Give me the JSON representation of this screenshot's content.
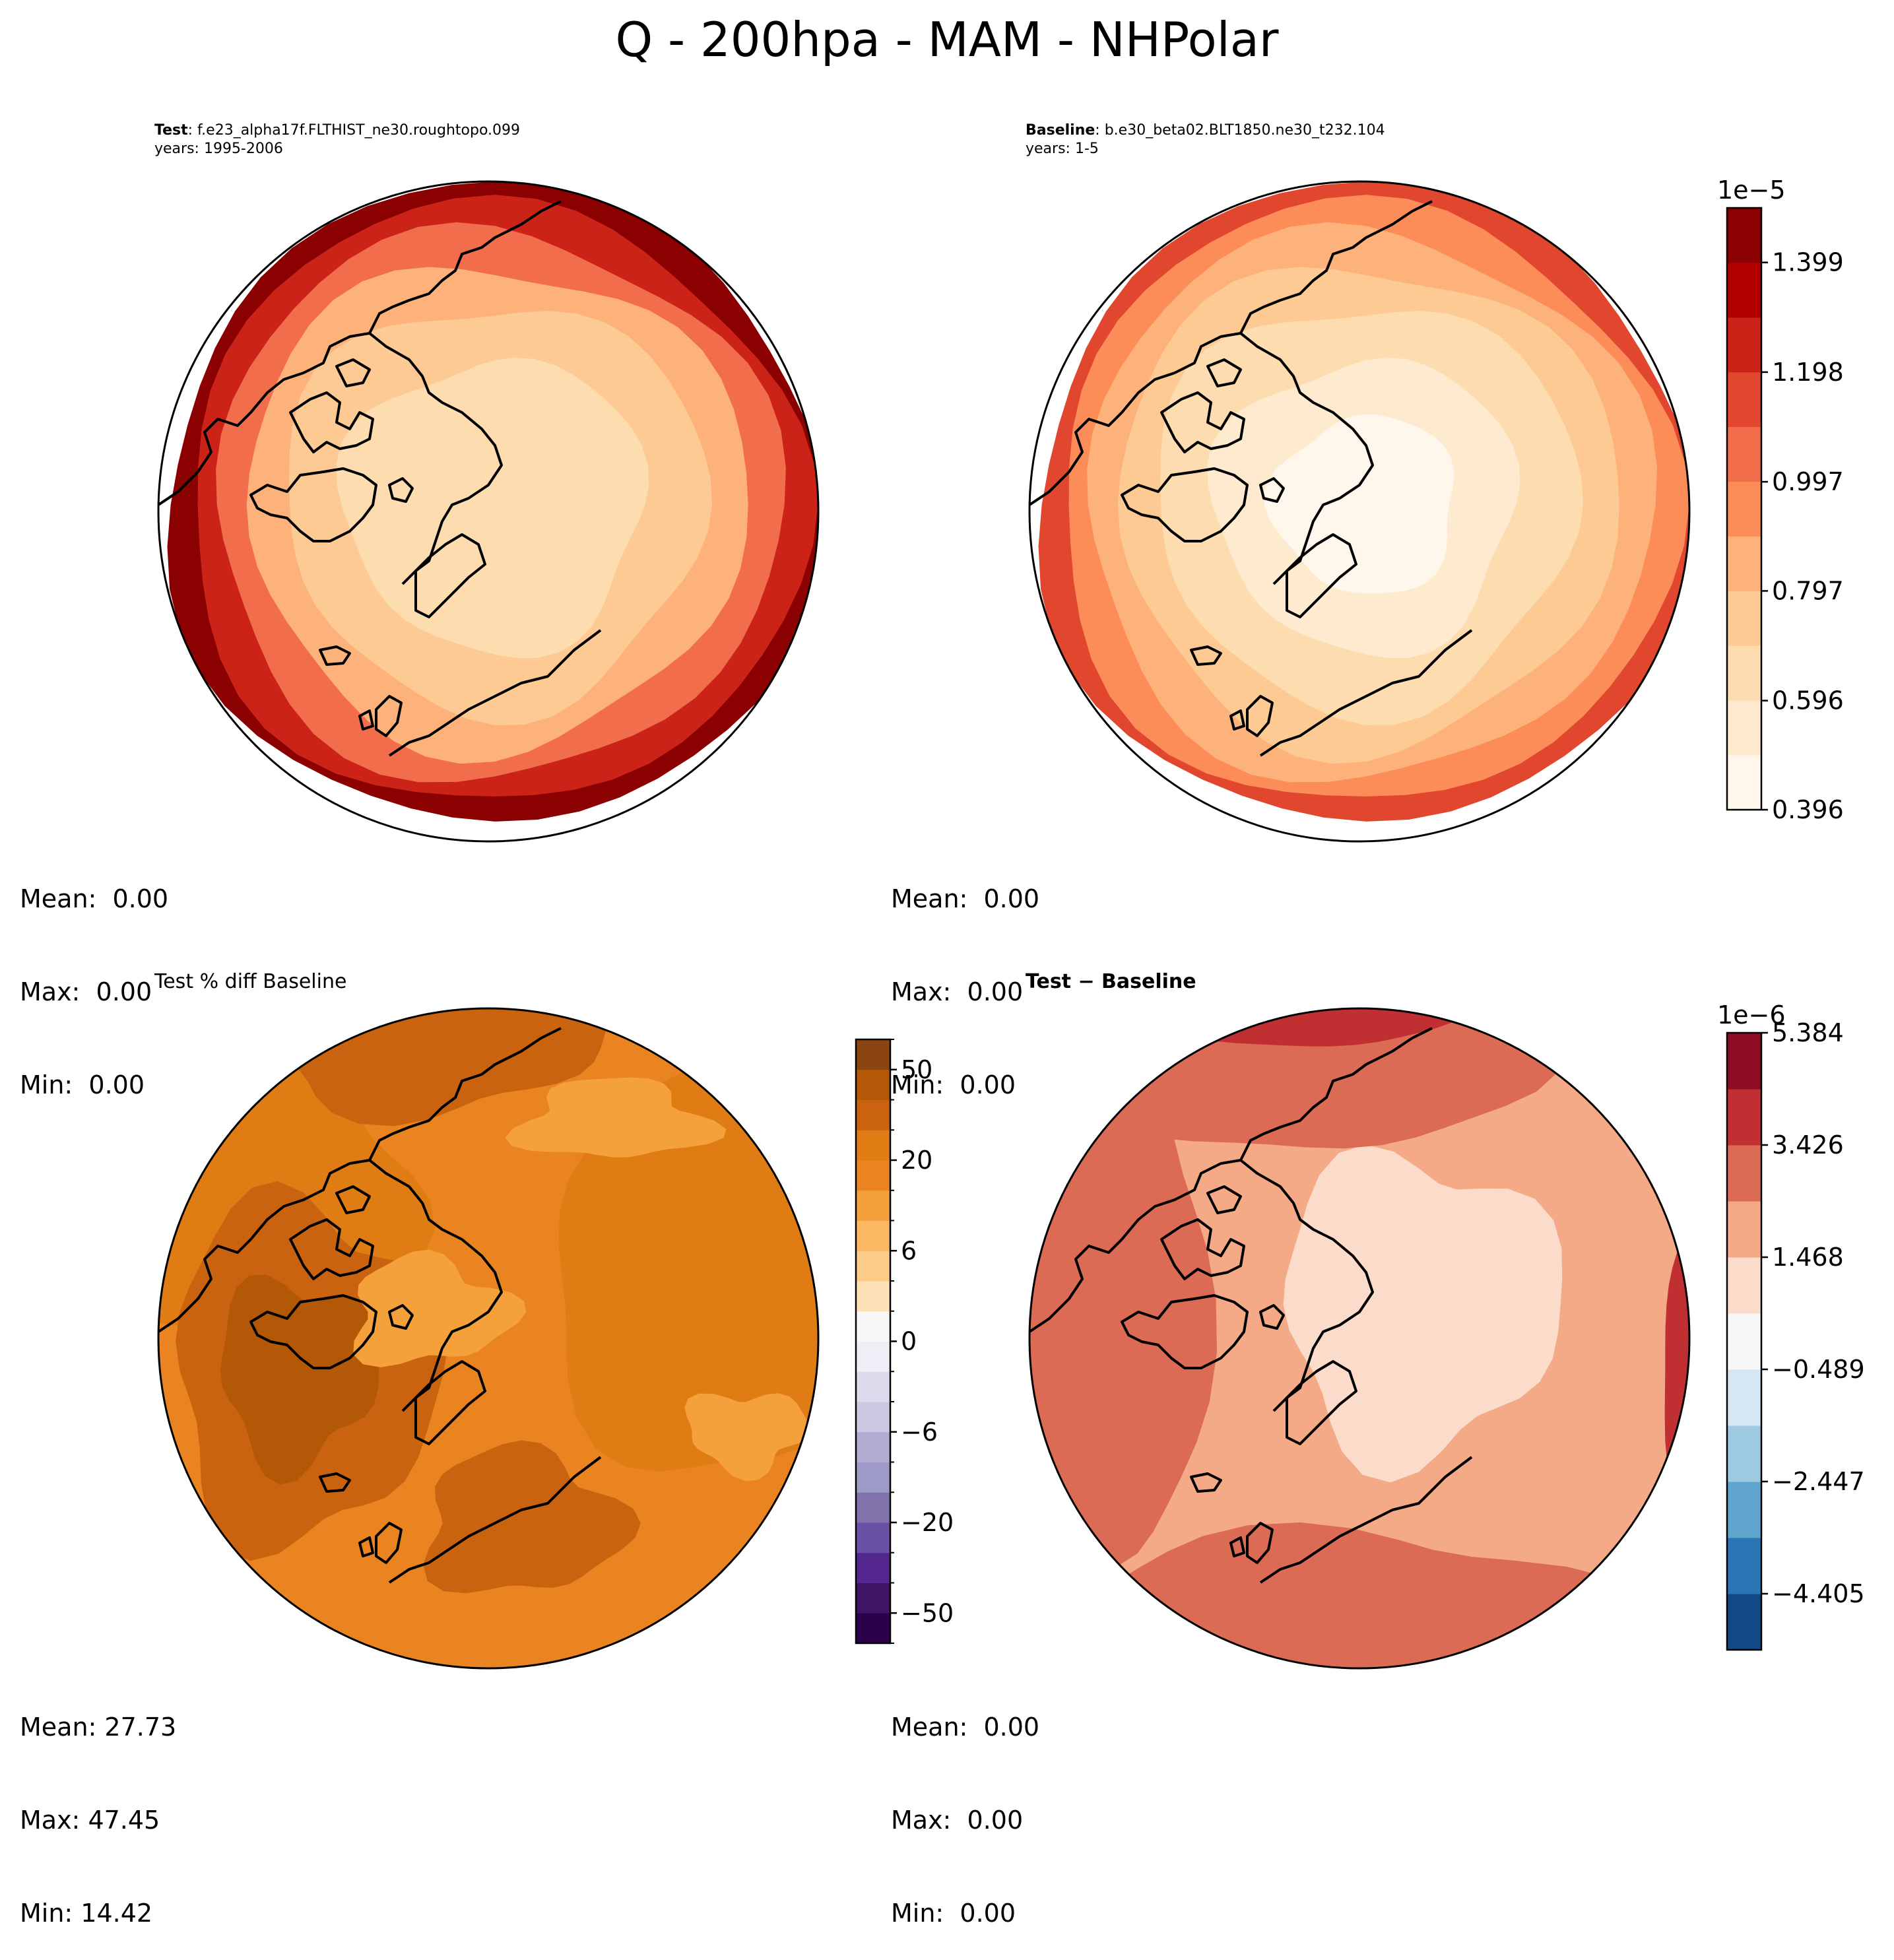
{
  "suptitle": "Q - 200hpa - MAM - NHPolar",
  "panels": {
    "test": {
      "label_bold": "Test",
      "label_rest": ": f.e23_alpha17f.FLTHIST_ne30.roughtopo.099",
      "years": "years: 1995-2006",
      "stats": {
        "mean": "Mean:  0.00",
        "max": "Max:  0.00",
        "min": "Min:  0.00"
      }
    },
    "baseline": {
      "label_bold": "Baseline",
      "label_rest": ": b.e30_beta02.BLT1850.ne30_t232.104",
      "years": "years: 1-5",
      "stats": {
        "mean": "Mean:  0.00",
        "max": "Max:  0.00",
        "min": "Min:  0.00"
      }
    },
    "pctdiff": {
      "title": "Test % diff Baseline",
      "stats": {
        "mean": "Mean: 27.73",
        "max": "Max: 47.45",
        "min": "Min: 14.42"
      }
    },
    "diff": {
      "title": "Test − Baseline",
      "stats": {
        "mean": "Mean:  0.00",
        "max": "Max:  0.00",
        "min": "Min:  0.00"
      }
    }
  },
  "chart_data": [
    {
      "type": "heatmap",
      "name": "Test",
      "projection": "north polar stereographic",
      "variable": "Q",
      "level": "200hpa",
      "season": "MAM",
      "colormap": "OrRd",
      "levels_e5": [
        0.396,
        0.496,
        0.596,
        0.696,
        0.797,
        0.897,
        0.997,
        1.098,
        1.198,
        1.298,
        1.399,
        1.499
      ],
      "colorbar_shared_with": "Baseline",
      "region_levels": {
        "pole": 0.596,
        "arctic": 0.697,
        "midlat": 0.997,
        "edge": 1.399
      }
    },
    {
      "type": "heatmap",
      "name": "Baseline",
      "colormap": "OrRd",
      "colorbar": {
        "exponent": "1e−5",
        "ticks": [
          "0.396",
          "0.596",
          "0.797",
          "0.997",
          "1.198",
          "1.399"
        ],
        "levels": [
          0.396,
          0.496,
          0.596,
          0.696,
          0.797,
          0.897,
          0.997,
          1.098,
          1.198,
          1.298,
          1.399,
          1.499
        ],
        "colors": [
          "#fff7ec",
          "#feebcf",
          "#fddcaf",
          "#fdca94",
          "#fdb27b",
          "#fc8d59",
          "#f26d4b",
          "#e1462f",
          "#cb2318",
          "#b20000",
          "#8b0000"
        ]
      },
      "region_levels": {
        "pole": 0.446,
        "arctic": 0.596,
        "midlat": 0.797,
        "edge": 1.098
      }
    },
    {
      "type": "heatmap",
      "name": "Test % diff Baseline",
      "colormap": "PuOr_r",
      "colorbar": {
        "ticks": [
          "50",
          "20",
          "6",
          "0",
          "−6",
          "−20",
          "−50"
        ],
        "tick_values": [
          50,
          20,
          6,
          0,
          -6,
          -20,
          -50
        ],
        "levels": [
          -70,
          -50,
          -40,
          -30,
          -20,
          -15,
          -10,
          -6,
          -4,
          -2,
          0,
          2,
          4,
          6,
          10,
          15,
          20,
          30,
          40,
          50,
          70
        ],
        "colors": [
          "#2d004b",
          "#3f1463",
          "#54278f",
          "#6a51a3",
          "#8073ac",
          "#9e9ac8",
          "#b2abd2",
          "#cbc9e2",
          "#dadaeb",
          "#efedf5",
          "#f7f7f7",
          "#fee0b6",
          "#fdcb88",
          "#fdb863",
          "#f5a13b",
          "#e98420",
          "#df7c14",
          "#c96310",
          "#b35806",
          "#8a4510"
        ]
      },
      "mean": 27.73,
      "max": 47.45,
      "min": 14.42
    },
    {
      "type": "heatmap",
      "name": "Test − Baseline",
      "colormap": "RdBu_r",
      "colorbar": {
        "exponent": "1e−6",
        "ticks": [
          "5.384",
          "3.426",
          "1.468",
          "−0.489",
          "−2.447",
          "−4.405"
        ],
        "levels": [
          -5.384,
          -4.405,
          -3.426,
          -2.447,
          -1.468,
          -0.489,
          0.489,
          1.468,
          2.447,
          3.426,
          4.405,
          5.384
        ],
        "colors": [
          "#124984",
          "#2c75b4",
          "#5fa5cd",
          "#9ecae1",
          "#d6e6f2",
          "#f7f7f7",
          "#fbdbca",
          "#f4a987",
          "#db6b55",
          "#c03033",
          "#8c0d25"
        ]
      },
      "region_levels": {
        "pole": 0.979,
        "arctic": 1.468,
        "midlat": 1.958,
        "edge": 3.426
      }
    }
  ]
}
